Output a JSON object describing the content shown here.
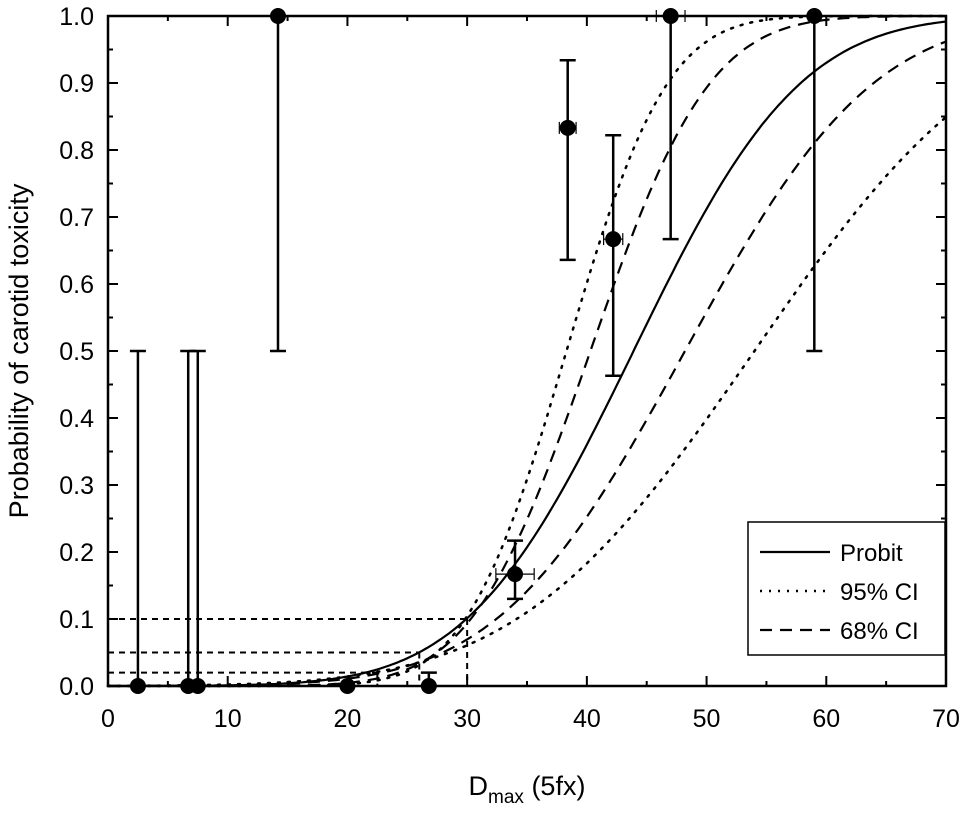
{
  "chart_data": {
    "type": "scatter",
    "xlabel_main": "D",
    "xlabel_sub": "max",
    "xlabel_rest": " (5fx)",
    "ylabel": "Probability of carotid toxicity",
    "xlim": [
      0,
      70
    ],
    "ylim": [
      0,
      1.0
    ],
    "xticks": [
      "0",
      "10",
      "20",
      "30",
      "40",
      "50",
      "60",
      "70"
    ],
    "yticks": [
      "0.0",
      "0.1",
      "0.2",
      "0.3",
      "0.4",
      "0.5",
      "0.6",
      "0.7",
      "0.8",
      "0.9",
      "1.0"
    ],
    "legend": {
      "position": "bottom-right",
      "entries": [
        {
          "label": "Probit",
          "style": "solid"
        },
        {
          "label": "95% CI",
          "style": "dotted"
        },
        {
          "label": "68% CI",
          "style": "dashed"
        }
      ]
    },
    "points": [
      {
        "x": 2.5,
        "y": 0.0,
        "ylo": 0.0,
        "yhi": 0.5,
        "xerr": 0
      },
      {
        "x": 6.7,
        "y": 0.0,
        "ylo": 0.0,
        "yhi": 0.5,
        "xerr": 0
      },
      {
        "x": 7.5,
        "y": 0.0,
        "ylo": 0.0,
        "yhi": 0.5,
        "xerr": 0
      },
      {
        "x": 14.2,
        "y": 1.0,
        "ylo": 0.5,
        "yhi": 1.0,
        "xerr": 0
      },
      {
        "x": 20.0,
        "y": 0.0,
        "ylo": 0.0,
        "yhi": 0.0,
        "xerr": 0
      },
      {
        "x": 26.8,
        "y": 0.0,
        "ylo": 0.0,
        "yhi": 0.02,
        "xerr": 0
      },
      {
        "x": 34.0,
        "y": 0.167,
        "ylo": 0.13,
        "yhi": 0.217,
        "xerr": 1.6
      },
      {
        "x": 38.4,
        "y": 0.833,
        "ylo": 0.636,
        "yhi": 0.934,
        "xerr": 0.7
      },
      {
        "x": 42.2,
        "y": 0.667,
        "ylo": 0.463,
        "yhi": 0.822,
        "xerr": 0.8
      },
      {
        "x": 47.0,
        "y": 1.0,
        "ylo": 0.667,
        "yhi": 1.0,
        "xerr": 1.2
      },
      {
        "x": 59.0,
        "y": 1.0,
        "ylo": 0.5,
        "yhi": 1.0,
        "xerr": 0
      }
    ],
    "curves": [
      {
        "name": "Probit",
        "style": "solid",
        "d50": 43.9,
        "sigma": 10.9
      },
      {
        "name": "68% CI lower dose",
        "style": "dashed",
        "d50": 40.3,
        "sigma": 7.8
      },
      {
        "name": "68% CI upper dose",
        "style": "dashed",
        "d50": 48.2,
        "sigma": 12.3
      },
      {
        "name": "95% CI lower dose",
        "style": "dotted",
        "d50": 38.3,
        "sigma": 6.6
      },
      {
        "name": "95% CI upper dose",
        "style": "dotted",
        "d50": 54.0,
        "sigma": 15.5
      }
    ],
    "threshold_lines": [
      {
        "y": 0.1,
        "x": 30.0
      },
      {
        "y": 0.05,
        "x": 26.0
      },
      {
        "y": 0.02,
        "x": 22.5
      }
    ]
  }
}
